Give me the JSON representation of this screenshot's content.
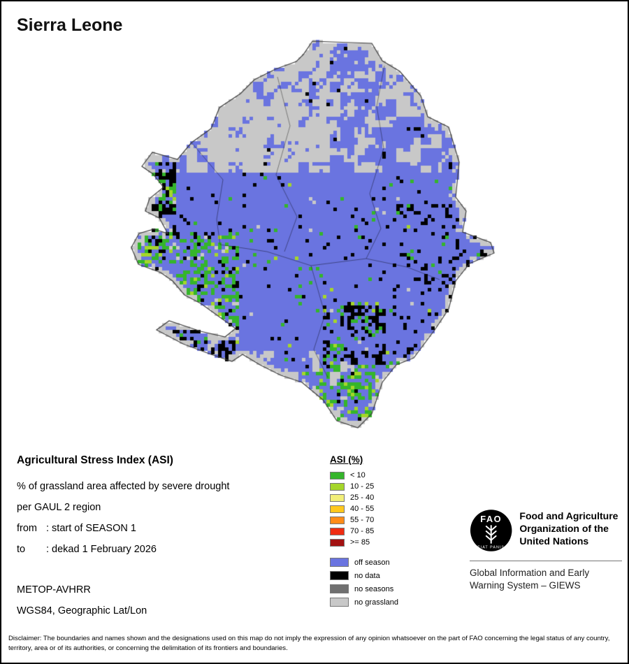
{
  "page": {
    "title": "Sierra Leone"
  },
  "info_block": {
    "heading": "Agricultural Stress Index (ASI)",
    "description": "% of grassland area affected by severe drought",
    "region_level": "per GAUL 2 region",
    "from_label": "from",
    "from_value": ": start of SEASON 1",
    "to_label": "to",
    "to_value": ": dekad 1 February 2026",
    "sensor": "METOP-AVHRR",
    "projection": "WGS84, Geographic Lat/Lon"
  },
  "legend": {
    "title": "ASI (%)",
    "classes": [
      {
        "label": "< 10",
        "color": "#35B52B"
      },
      {
        "label": "10 - 25",
        "color": "#A5D62A"
      },
      {
        "label": "25 - 40",
        "color": "#F2EF79"
      },
      {
        "label": "40 - 55",
        "color": "#FFC81E"
      },
      {
        "label": "55 - 70",
        "color": "#FF8C19"
      },
      {
        "label": "70 - 85",
        "color": "#EF2C12"
      },
      {
        "label": ">= 85",
        "color": "#A31212"
      }
    ],
    "extra": [
      {
        "label": "off season",
        "color": "#6A74E0"
      },
      {
        "label": "no data",
        "color": "#000000"
      },
      {
        "label": "no seasons",
        "color": "#707070"
      },
      {
        "label": "no grassland",
        "color": "#C8C8C8"
      }
    ]
  },
  "map": {
    "region": "Sierra Leone",
    "colors": {
      "off_season": "#6A74E0",
      "no_data": "#000000",
      "no_grassland": "#C8C8C8",
      "asi_lt_10": "#35B52B",
      "asi_10_25": "#A5D62A",
      "outline": "#3A3A3A"
    }
  },
  "fao": {
    "logo_text": "FAO",
    "logo_motto": "FIAT PANIS",
    "org_name": "Food and Agriculture Organization of the United Nations",
    "giews": "Global Information and Early Warning System – GIEWS"
  },
  "disclaimer": "Disclaimer: The boundaries and names shown and the designations used on this map do not imply the expression of any opinion whatsoever on the part of FAO concerning the legal status of any country, territory, area or of its authorities, or concerning the delimitation of its frontiers and boundaries."
}
